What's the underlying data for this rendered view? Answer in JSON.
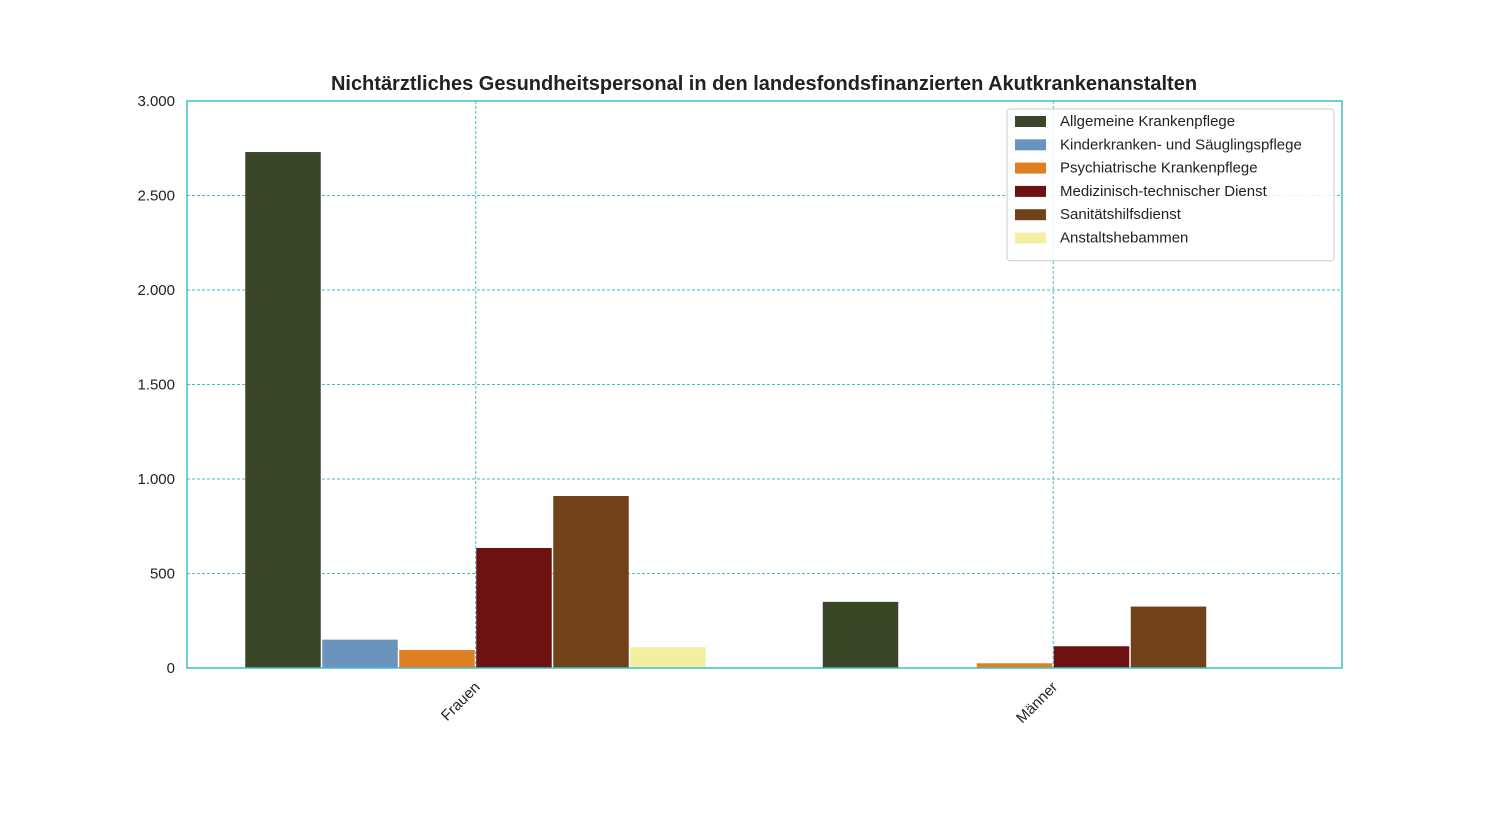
{
  "chart_data": {
    "type": "bar",
    "title": "Nichtärztliches Gesundheitspersonal in den landesfondsfinanzierten Akutkrankenanstalten",
    "xlabel": "",
    "ylabel": "",
    "categories": [
      "Frauen",
      "Männer"
    ],
    "series": [
      {
        "name": "Allgemeine Krankenpflege",
        "color": "#3b4628",
        "values": [
          2730,
          350
        ]
      },
      {
        "name": "Kinderkranken- und Säuglingspflege",
        "color": "#6a93bd",
        "values": [
          150,
          0
        ]
      },
      {
        "name": "Psychiatrische Krankenpflege",
        "color": "#df7f22",
        "values": [
          95,
          25
        ]
      },
      {
        "name": "Medizinisch-technischer Dienst",
        "color": "#6e1111",
        "values": [
          635,
          115
        ]
      },
      {
        "name": "Sanitätshilfsdienst",
        "color": "#714219",
        "values": [
          910,
          325
        ]
      },
      {
        "name": "Anstaltshebammen",
        "color": "#f2efa1",
        "values": [
          110,
          0
        ]
      }
    ],
    "ylim": [
      0,
      3000
    ],
    "yticks": [
      0,
      500,
      1000,
      1500,
      2000,
      2500,
      3000
    ],
    "ytick_labels": [
      "0",
      "500",
      "1.000",
      "1.500",
      "2.000",
      "2.500",
      "3.000"
    ],
    "grid": true,
    "legend_position": "top-right"
  }
}
